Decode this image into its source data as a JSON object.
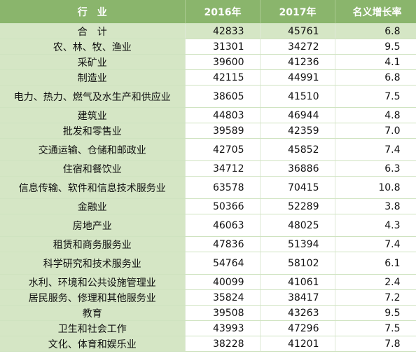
{
  "headers": {
    "industry": "行　业",
    "y2016": "2016年",
    "y2017": "2017年",
    "growth": "名义增长率"
  },
  "rows": [
    {
      "industry": "合　计",
      "y2016": "42833",
      "y2017": "45761",
      "growth": "6.8"
    },
    {
      "industry": "农、林、牧、渔业",
      "y2016": "31301",
      "y2017": "34272",
      "growth": "9.5"
    },
    {
      "industry": "采矿业",
      "y2016": "39600",
      "y2017": "41236",
      "growth": "4.1"
    },
    {
      "industry": "制造业",
      "y2016": "42115",
      "y2017": "44991",
      "growth": "6.8"
    },
    {
      "industry": "电力、热力、燃气及水生产和供应业",
      "y2016": "38605",
      "y2017": "41510",
      "growth": "7.5"
    },
    {
      "industry": "建筑业",
      "y2016": "44803",
      "y2017": "46944",
      "growth": "4.8"
    },
    {
      "industry": "批发和零售业",
      "y2016": "39589",
      "y2017": "42359",
      "growth": "7.0"
    },
    {
      "industry": "交通运输、仓储和邮政业",
      "y2016": "42705",
      "y2017": "45852",
      "growth": "7.4"
    },
    {
      "industry": "住宿和餐饮业",
      "y2016": "34712",
      "y2017": "36886",
      "growth": "6.3"
    },
    {
      "industry": "信息传输、软件和信息技术服务业",
      "y2016": "63578",
      "y2017": "70415",
      "growth": "10.8"
    },
    {
      "industry": "金融业",
      "y2016": "50366",
      "y2017": "52289",
      "growth": "3.8"
    },
    {
      "industry": "房地产业",
      "y2016": "46063",
      "y2017": "48025",
      "growth": "4.3"
    },
    {
      "industry": "租赁和商务服务业",
      "y2016": "47836",
      "y2017": "51394",
      "growth": "7.4"
    },
    {
      "industry": "科学研究和技术服务业",
      "y2016": "54764",
      "y2017": "58102",
      "growth": "6.1"
    },
    {
      "industry": "水利、环境和公共设施管理业",
      "y2016": "40099",
      "y2017": "41061",
      "growth": "2.4"
    },
    {
      "industry": "居民服务、修理和其他服务业",
      "y2016": "35824",
      "y2017": "38417",
      "growth": "7.2"
    },
    {
      "industry": "教育",
      "y2016": "39508",
      "y2017": "43263",
      "growth": "9.5"
    },
    {
      "industry": "卫生和社会工作",
      "y2016": "43993",
      "y2017": "47296",
      "growth": "7.5"
    },
    {
      "industry": "文化、体育和娱乐业",
      "y2016": "38228",
      "y2017": "41201",
      "growth": "7.8"
    }
  ]
}
